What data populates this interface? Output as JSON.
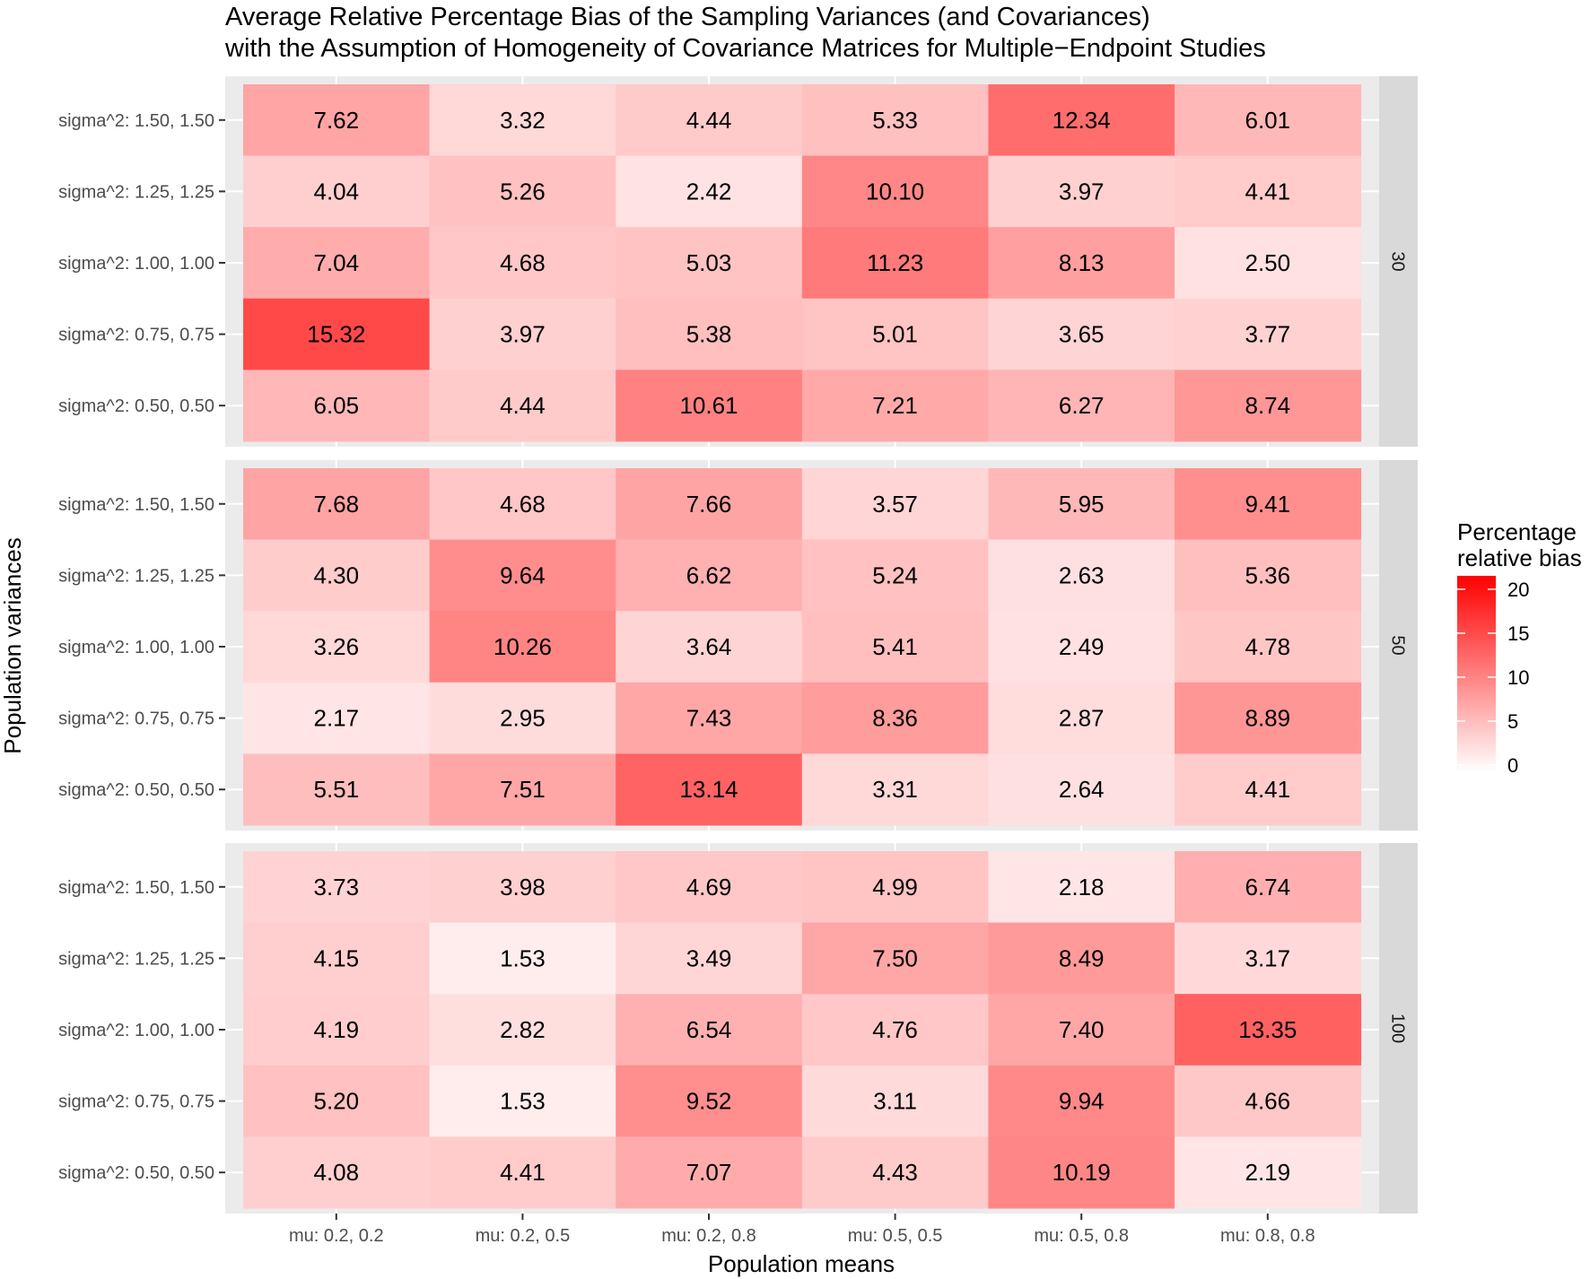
{
  "chart_data": {
    "type": "heatmap",
    "title": [
      "Average Relative Percentage Bias of the Sampling Variances (and Covariances)",
      "with the Assumption of Homogeneity of Covariance Matrices for Multiple−Endpoint Studies"
    ],
    "xlabel": "Population means",
    "ylabel": "Population variances",
    "x_categories": [
      "mu: 0.2, 0.2",
      "mu: 0.2, 0.5",
      "mu: 0.2, 0.8",
      "mu: 0.5, 0.5",
      "mu: 0.5, 0.8",
      "mu: 0.8, 0.8"
    ],
    "y_categories": [
      "sigma^2: 1.50, 1.50",
      "sigma^2: 1.25, 1.25",
      "sigma^2: 1.00, 1.00",
      "sigma^2: 0.75, 0.75",
      "sigma^2: 0.50, 0.50"
    ],
    "facets": [
      {
        "label": "30",
        "values": [
          [
            7.62,
            3.32,
            4.44,
            5.33,
            12.34,
            6.01
          ],
          [
            4.04,
            5.26,
            2.42,
            10.1,
            3.97,
            4.41
          ],
          [
            7.04,
            4.68,
            5.03,
            11.23,
            8.13,
            2.5
          ],
          [
            15.32,
            3.97,
            5.38,
            5.01,
            3.65,
            3.77
          ],
          [
            6.05,
            4.44,
            10.61,
            7.21,
            6.27,
            8.74
          ]
        ]
      },
      {
        "label": "50",
        "values": [
          [
            7.68,
            4.68,
            7.66,
            3.57,
            5.95,
            9.41
          ],
          [
            4.3,
            9.64,
            6.62,
            5.24,
            2.63,
            5.36
          ],
          [
            3.26,
            10.26,
            3.64,
            5.41,
            2.49,
            4.78
          ],
          [
            2.17,
            2.95,
            7.43,
            8.36,
            2.87,
            8.89
          ],
          [
            5.51,
            7.51,
            13.14,
            3.31,
            2.64,
            4.41
          ]
        ]
      },
      {
        "label": "100",
        "values": [
          [
            3.73,
            3.98,
            4.69,
            4.99,
            2.18,
            6.74
          ],
          [
            4.15,
            1.53,
            3.49,
            7.5,
            8.49,
            3.17
          ],
          [
            4.19,
            2.82,
            6.54,
            4.76,
            7.4,
            13.35
          ],
          [
            5.2,
            1.53,
            9.52,
            3.11,
            9.94,
            4.66
          ],
          [
            4.08,
            4.41,
            7.07,
            4.43,
            10.19,
            2.19
          ]
        ]
      }
    ],
    "legend": {
      "title": [
        "Percentage",
        "relative bias"
      ],
      "ticks": [
        0,
        5,
        10,
        15,
        20
      ],
      "range": [
        0,
        21.5
      ],
      "low_color": "#FFFFFF",
      "high_color": "#FF0000",
      "placement": "right"
    },
    "panel_bg": "#EBEBEB",
    "strip_bg": "#D9D9D9"
  }
}
